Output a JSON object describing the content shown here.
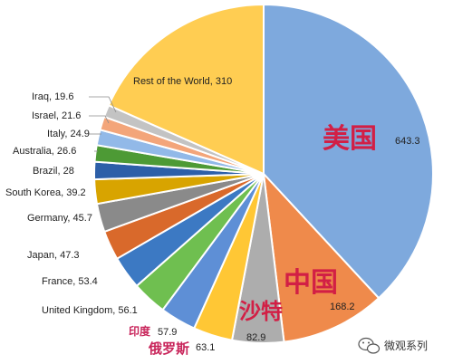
{
  "chart_data": {
    "type": "pie",
    "title": "",
    "start_angle_deg": 0,
    "direction": "clockwise",
    "slices": [
      {
        "label": "美国",
        "value": 643.3,
        "value_text": "643.3",
        "color": "#7ea9dd"
      },
      {
        "label": "中国",
        "value": 168.2,
        "value_text": "168.2",
        "color": "#ef8a4b"
      },
      {
        "label": "沙特",
        "value": 82.9,
        "value_text": "82.9",
        "color": "#adadad"
      },
      {
        "label": "俄罗斯",
        "value": 63.1,
        "value_text": "63.1",
        "color": "#ffc735"
      },
      {
        "label": "印度",
        "value": 57.9,
        "value_text": "57.9",
        "color": "#5e8fd6"
      },
      {
        "label": "United Kingdom",
        "value": 56.1,
        "value_text": "United Kingdom, 56.1",
        "color": "#6fbf50"
      },
      {
        "label": "France",
        "value": 53.4,
        "value_text": "France, 53.4",
        "color": "#3c79c3"
      },
      {
        "label": "Japan",
        "value": 47.3,
        "value_text": "Japan, 47.3",
        "color": "#d9692b"
      },
      {
        "label": "Germany",
        "value": 45.7,
        "value_text": "Germany, 45.7",
        "color": "#8a8a8a"
      },
      {
        "label": "South Korea",
        "value": 39.2,
        "value_text": "South Korea, 39.2",
        "color": "#d8a400"
      },
      {
        "label": "Brazil",
        "value": 28,
        "value_text": "Brazil, 28",
        "color": "#2d5fa8"
      },
      {
        "label": "Australia",
        "value": 26.6,
        "value_text": "Australia, 26.6",
        "color": "#4d9a35"
      },
      {
        "label": "Italy",
        "value": 24.9,
        "value_text": "Italy, 24.9",
        "color": "#92b9e8"
      },
      {
        "label": "Israel",
        "value": 21.6,
        "value_text": "Israel, 21.6",
        "color": "#f3a57a"
      },
      {
        "label": "Iraq",
        "value": 19.6,
        "value_text": "Iraq, 19.6",
        "color": "#c3c3c3"
      },
      {
        "label": "Rest of the World",
        "value": 310,
        "value_text": "Rest of the World, 310",
        "color": "#ffcd52"
      }
    ],
    "cn_labels": {
      "usa": "美国",
      "china": "中国",
      "saudi": "沙特",
      "india": "印度",
      "russia": "俄罗斯"
    }
  },
  "watermark": {
    "text": "微观系列"
  }
}
